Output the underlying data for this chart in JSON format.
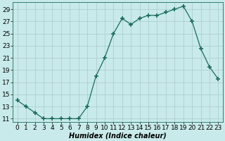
{
  "x": [
    0,
    1,
    2,
    3,
    4,
    5,
    6,
    7,
    8,
    9,
    10,
    11,
    12,
    13,
    14,
    15,
    16,
    17,
    18,
    19,
    20,
    21,
    22,
    23
  ],
  "y": [
    14,
    13,
    12,
    11,
    11,
    11,
    11,
    11,
    13,
    18,
    21,
    25,
    27.5,
    26.5,
    27.5,
    28,
    28,
    28.5,
    29,
    29.5,
    27,
    22.5,
    19.5,
    17.5
  ],
  "line_color": "#1a6b5e",
  "marker": "+",
  "marker_size": 4,
  "bg_color": "#c8eaea",
  "grid_color": "#b0cfcf",
  "xlabel": "Humidex (Indice chaleur)",
  "ylim": [
    10.5,
    30.2
  ],
  "xlim": [
    -0.5,
    23.5
  ],
  "yticks": [
    11,
    13,
    15,
    17,
    19,
    21,
    23,
    25,
    27,
    29
  ],
  "xticks": [
    0,
    1,
    2,
    3,
    4,
    5,
    6,
    7,
    8,
    9,
    10,
    11,
    12,
    13,
    14,
    15,
    16,
    17,
    18,
    19,
    20,
    21,
    22,
    23
  ],
  "label_fontsize": 7,
  "tick_fontsize": 6.5
}
